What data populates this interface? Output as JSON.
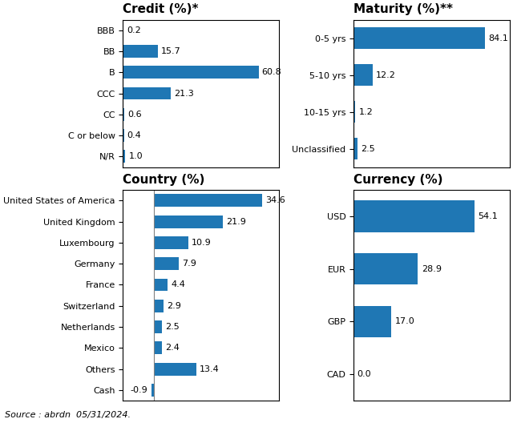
{
  "chart_data": [
    {
      "type": "bar",
      "orientation": "horizontal",
      "title": "Credit (%)*",
      "categories": [
        "BBB",
        "BB",
        "B",
        "CCC",
        "CC",
        "C or below",
        "N/R"
      ],
      "values": [
        0.2,
        15.7,
        60.8,
        21.3,
        0.6,
        0.4,
        1.0
      ],
      "xlim": [
        0,
        70
      ],
      "data_labels": true,
      "tick_labels": "y"
    },
    {
      "type": "bar",
      "orientation": "horizontal",
      "title": "Maturity (%)**",
      "categories": [
        "0-5 yrs",
        "5-10 yrs",
        "10-15 yrs",
        "Unclassified"
      ],
      "values": [
        84.1,
        12.2,
        1.2,
        2.5
      ],
      "xlim": [
        0,
        100
      ],
      "data_labels": true,
      "tick_labels": "y"
    },
    {
      "type": "bar",
      "orientation": "horizontal",
      "title": "Country (%)",
      "categories": [
        "United States of America",
        "United Kingdom",
        "Luxembourg",
        "Germany",
        "France",
        "Switzerland",
        "Netherlands",
        "Mexico",
        "Others",
        "Cash"
      ],
      "values": [
        34.6,
        21.9,
        10.9,
        7.9,
        4.4,
        2.9,
        2.5,
        2.4,
        13.4,
        -0.9
      ],
      "xlim": [
        -10,
        40
      ],
      "data_labels": true,
      "tick_labels": "y"
    },
    {
      "type": "bar",
      "orientation": "horizontal",
      "title": "Currency (%)",
      "categories": [
        "USD",
        "EUR",
        "GBP",
        "CAD"
      ],
      "values": [
        54.1,
        28.9,
        17.0,
        0.0
      ],
      "xlim": [
        0,
        70
      ],
      "data_labels": true,
      "tick_labels": "y"
    }
  ],
  "source": "Source : abrdn  05/31/2024."
}
